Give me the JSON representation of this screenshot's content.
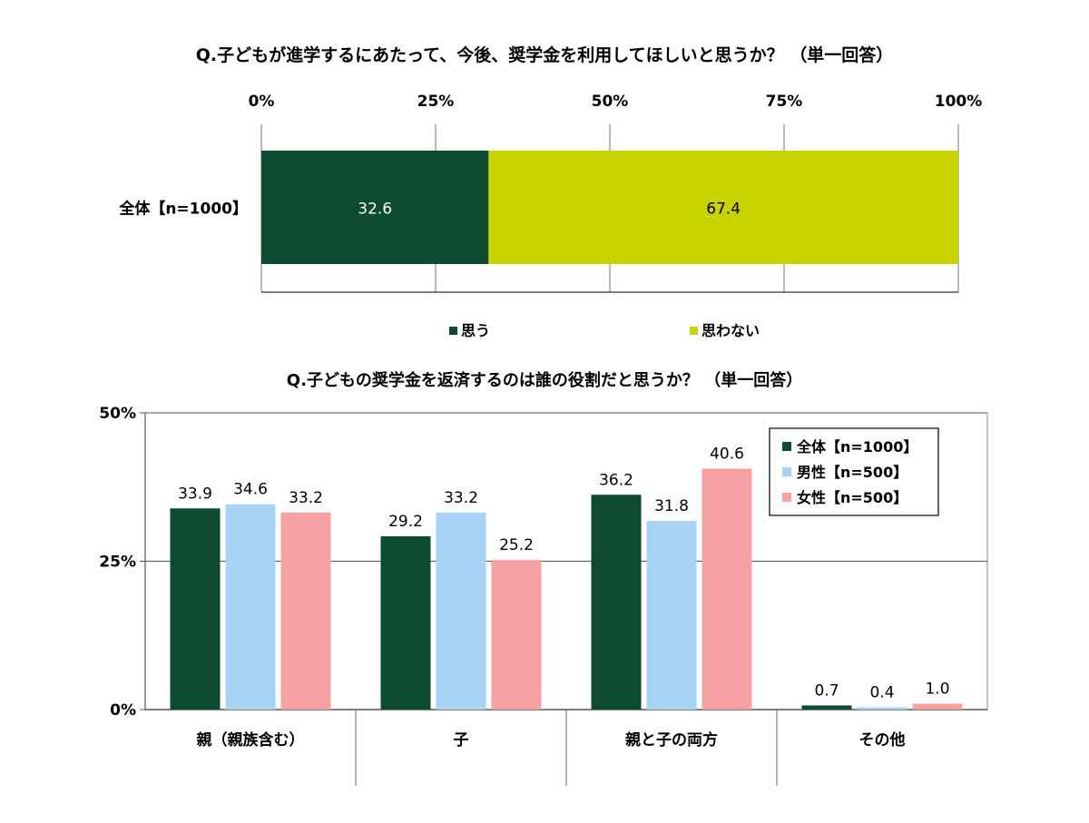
{
  "chart_data": [
    {
      "type": "bar",
      "orientation": "horizontal",
      "stacked": true,
      "title": "Q.子どもが進学するにあたって、今後、奨学金を利用してほしいと思うか？ （単一回答）",
      "categories": [
        "全体【n=1000】"
      ],
      "series": [
        {
          "name": "思う",
          "values": [
            32.6
          ],
          "color": "#0d4a32"
        },
        {
          "name": "思わない",
          "values": [
            67.4
          ],
          "color": "#c8d400"
        }
      ],
      "ticks": [
        "0%",
        "25%",
        "50%",
        "75%",
        "100%"
      ],
      "xlim": [
        0,
        100
      ],
      "grid": true,
      "legend": "bottom"
    },
    {
      "type": "bar",
      "title": "Q.子どもの奨学金を返済するのは誰の役割だと思うか？ （単一回答）",
      "categories": [
        "親（親族含む）",
        "子",
        "親と子の両方",
        "その他"
      ],
      "series": [
        {
          "name": "全体【n=1000】",
          "values": [
            33.9,
            29.2,
            36.2,
            0.7
          ],
          "labels": [
            "33.9",
            "29.2",
            "36.2",
            "0.7"
          ],
          "color": "#0d4a32"
        },
        {
          "name": "男性【n=500】",
          "values": [
            34.6,
            33.2,
            31.8,
            0.4
          ],
          "labels": [
            "34.6",
            "33.2",
            "31.8",
            "0.4"
          ],
          "color": "#a9d3f5"
        },
        {
          "name": "女性【n=500】",
          "values": [
            33.2,
            25.2,
            40.6,
            1.0
          ],
          "labels": [
            "33.2",
            "25.2",
            "40.6",
            "1.0"
          ],
          "color": "#f5a0a2"
        }
      ],
      "ticks": [
        "0%",
        "25%",
        "50%"
      ],
      "ylim": [
        0,
        50
      ],
      "grid": true,
      "legend": "top-right"
    }
  ]
}
